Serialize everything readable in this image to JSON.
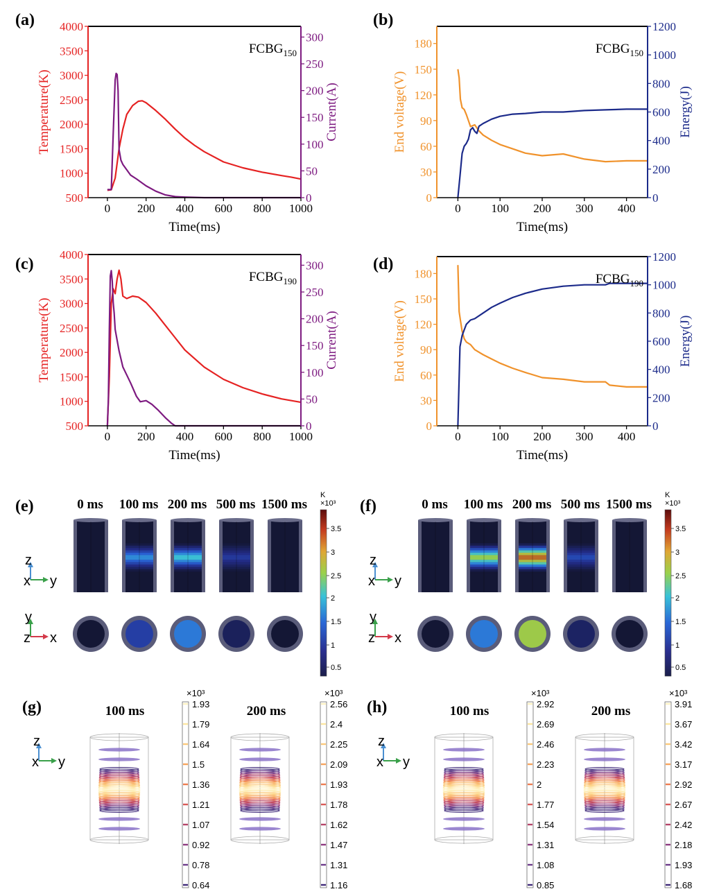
{
  "chart_data": [
    {
      "id": "a",
      "type": "line",
      "panel_label": "(a)",
      "annotation_main": "FCBG",
      "annotation_sub": "150",
      "xlabel": "Time(ms)",
      "xlim": [
        -100,
        1000
      ],
      "xticks": [
        0,
        200,
        400,
        600,
        800,
        1000
      ],
      "left_axis": {
        "label": "Temperature(K)",
        "color": "#e52222",
        "lim": [
          500,
          4000
        ],
        "ticks": [
          500,
          1000,
          1500,
          2000,
          2500,
          3000,
          3500,
          4000
        ]
      },
      "right_axis": {
        "label": "Current(A)",
        "color": "#7d1a80",
        "lim": [
          0,
          320
        ],
        "ticks": [
          0,
          50,
          100,
          150,
          200,
          250,
          300
        ]
      },
      "series": [
        {
          "name": "Temperature",
          "axis": "left",
          "color": "#e52222",
          "x": [
            0,
            20,
            40,
            60,
            80,
            100,
            130,
            160,
            180,
            200,
            250,
            300,
            350,
            400,
            450,
            500,
            600,
            700,
            800,
            900,
            950,
            1000
          ],
          "y": [
            650,
            660,
            900,
            1500,
            1900,
            2200,
            2380,
            2470,
            2480,
            2440,
            2280,
            2100,
            1900,
            1720,
            1570,
            1440,
            1230,
            1110,
            1020,
            950,
            920,
            880
          ]
        },
        {
          "name": "Current",
          "axis": "right",
          "color": "#7d1a80",
          "x": [
            0,
            20,
            30,
            40,
            45,
            50,
            55,
            60,
            70,
            80,
            100,
            120,
            150,
            200,
            250,
            300,
            350,
            400,
            500,
            700,
            1000
          ],
          "y": [
            15,
            15,
            120,
            220,
            232,
            230,
            200,
            90,
            70,
            62,
            52,
            42,
            35,
            22,
            12,
            5,
            2,
            1,
            0,
            0,
            0
          ]
        }
      ]
    },
    {
      "id": "b",
      "type": "line",
      "panel_label": "(b)",
      "annotation_main": "FCBG",
      "annotation_sub": "150",
      "xlabel": "Time(ms)",
      "xlim": [
        -50,
        450
      ],
      "xticks": [
        0,
        100,
        200,
        300,
        400
      ],
      "left_axis": {
        "label": "End voltage(V)",
        "color": "#f0922b",
        "lim": [
          0,
          200
        ],
        "ticks": [
          0,
          30,
          60,
          90,
          120,
          150,
          180
        ]
      },
      "right_axis": {
        "label": "Energy(J)",
        "color": "#1b2a8a",
        "lim": [
          0,
          1200
        ],
        "ticks": [
          0,
          200,
          400,
          600,
          800,
          1000,
          1200
        ]
      },
      "series": [
        {
          "name": "End voltage",
          "axis": "left",
          "color": "#f0922b",
          "x": [
            0,
            3,
            6,
            10,
            15,
            20,
            25,
            30,
            40,
            50,
            60,
            80,
            100,
            130,
            160,
            200,
            250,
            300,
            350,
            400,
            450
          ],
          "y": [
            150,
            140,
            115,
            105,
            103,
            97,
            90,
            83,
            85,
            78,
            73,
            67,
            62,
            57,
            52,
            49,
            51,
            45,
            42,
            43,
            43
          ]
        },
        {
          "name": "Energy",
          "axis": "right",
          "color": "#1b2a8a",
          "x": [
            0,
            5,
            10,
            15,
            20,
            25,
            30,
            35,
            40,
            45,
            50,
            60,
            80,
            100,
            130,
            160,
            200,
            250,
            300,
            350,
            400,
            450
          ],
          "y": [
            0,
            150,
            310,
            360,
            380,
            410,
            475,
            490,
            465,
            450,
            500,
            520,
            550,
            570,
            585,
            590,
            600,
            600,
            610,
            615,
            620,
            620
          ]
        }
      ]
    },
    {
      "id": "c",
      "type": "line",
      "panel_label": "(c)",
      "annotation_main": "FCBG",
      "annotation_sub": "190",
      "xlabel": "Time(ms)",
      "xlim": [
        -100,
        1000
      ],
      "xticks": [
        0,
        200,
        400,
        600,
        800,
        1000
      ],
      "left_axis": {
        "label": "Temperature(K)",
        "color": "#e52222",
        "lim": [
          500,
          4000
        ],
        "ticks": [
          500,
          1000,
          1500,
          2000,
          2500,
          3000,
          3500,
          4000
        ]
      },
      "right_axis": {
        "label": "Current(A)",
        "color": "#7d1a80",
        "lim": [
          0,
          320
        ],
        "ticks": [
          0,
          50,
          100,
          150,
          200,
          250,
          300
        ]
      },
      "series": [
        {
          "name": "Temperature",
          "axis": "left",
          "color": "#e52222",
          "x": [
            0,
            10,
            20,
            30,
            40,
            50,
            60,
            70,
            80,
            100,
            130,
            160,
            200,
            250,
            300,
            350,
            400,
            500,
            600,
            700,
            800,
            900,
            1000
          ],
          "y": [
            500,
            1500,
            3000,
            3300,
            3200,
            3500,
            3680,
            3500,
            3150,
            3100,
            3150,
            3130,
            3020,
            2800,
            2550,
            2300,
            2050,
            1700,
            1450,
            1280,
            1150,
            1050,
            980
          ]
        },
        {
          "name": "Current",
          "axis": "right",
          "color": "#7d1a80",
          "x": [
            0,
            5,
            10,
            15,
            20,
            25,
            30,
            35,
            40,
            50,
            60,
            80,
            100,
            120,
            150,
            170,
            200,
            230,
            260,
            300,
            330,
            350,
            400,
            1000
          ],
          "y": [
            0,
            50,
            180,
            280,
            290,
            270,
            230,
            210,
            180,
            160,
            140,
            110,
            95,
            80,
            55,
            45,
            47,
            40,
            30,
            15,
            5,
            0,
            0,
            0
          ]
        }
      ]
    },
    {
      "id": "d",
      "type": "line",
      "panel_label": "(d)",
      "annotation_main": "FCBG",
      "annotation_sub": "190",
      "xlabel": "Time(ms)",
      "xlim": [
        -50,
        450
      ],
      "xticks": [
        0,
        100,
        200,
        300,
        400
      ],
      "left_axis": {
        "label": "End voltage(V)",
        "color": "#f0922b",
        "lim": [
          0,
          200
        ],
        "ticks": [
          0,
          30,
          60,
          90,
          120,
          150,
          180
        ]
      },
      "right_axis": {
        "label": "Energy(J)",
        "color": "#1b2a8a",
        "lim": [
          0,
          1200
        ],
        "ticks": [
          0,
          200,
          400,
          600,
          800,
          1000,
          1200
        ]
      },
      "series": [
        {
          "name": "End voltage",
          "axis": "left",
          "color": "#f0922b",
          "x": [
            0,
            3,
            6,
            10,
            15,
            20,
            30,
            40,
            60,
            80,
            100,
            130,
            160,
            200,
            250,
            300,
            350,
            360,
            400,
            450
          ],
          "y": [
            190,
            135,
            125,
            112,
            103,
            99,
            96,
            90,
            84,
            79,
            74,
            68,
            63,
            57,
            55,
            52,
            52,
            48,
            46,
            46
          ]
        },
        {
          "name": "Energy",
          "axis": "right",
          "color": "#1b2a8a",
          "x": [
            0,
            5,
            10,
            15,
            20,
            30,
            40,
            60,
            80,
            100,
            130,
            160,
            200,
            250,
            300,
            350,
            360,
            400,
            450
          ],
          "y": [
            0,
            560,
            640,
            680,
            720,
            750,
            760,
            800,
            840,
            870,
            910,
            940,
            970,
            990,
            1000,
            1000,
            1010,
            1010,
            1010
          ]
        }
      ]
    }
  ],
  "panel_e": {
    "label": "(e)",
    "times": [
      "0 ms",
      "100 ms",
      "200 ms",
      "500 ms",
      "1500 ms"
    ],
    "colorbar": {
      "unit": "K",
      "scale": "×10³",
      "ticks": [
        "3.5",
        "3",
        "2.5",
        "2",
        "1.5",
        "1",
        "0.5"
      ]
    },
    "side_axes": [
      "z",
      "x",
      "y"
    ],
    "top_axes": [
      "y",
      "z",
      "x"
    ],
    "core_intensity": [
      0.0,
      0.45,
      0.55,
      0.25,
      0.0
    ]
  },
  "panel_f": {
    "label": "(f)",
    "times": [
      "0 ms",
      "100 ms",
      "200 ms",
      "500 ms",
      "1500 ms"
    ],
    "colorbar": {
      "unit": "K",
      "scale": "×10³",
      "ticks": [
        "3.5",
        "3",
        "2.5",
        "2",
        "1.5",
        "1",
        "0.5"
      ]
    },
    "side_axes": [
      "z",
      "x",
      "y"
    ],
    "top_axes": [
      "y",
      "z",
      "x"
    ],
    "core_intensity": [
      0.0,
      0.7,
      0.95,
      0.3,
      0.0
    ]
  },
  "panel_g": {
    "label": "(g)",
    "axes": [
      "z",
      "x",
      "y"
    ],
    "plots": [
      {
        "time": "100 ms",
        "scale": "×10³",
        "ticks": [
          "1.93",
          "1.79",
          "1.64",
          "1.5",
          "1.36",
          "1.21",
          "1.07",
          "0.92",
          "0.78",
          "0.64"
        ]
      },
      {
        "time": "200 ms",
        "scale": "×10³",
        "ticks": [
          "2.56",
          "2.4",
          "2.25",
          "2.09",
          "1.93",
          "1.78",
          "1.62",
          "1.47",
          "1.31",
          "1.16"
        ]
      }
    ]
  },
  "panel_h": {
    "label": "(h)",
    "axes": [
      "z",
      "x",
      "y"
    ],
    "plots": [
      {
        "time": "100 ms",
        "scale": "×10³",
        "ticks": [
          "2.92",
          "2.69",
          "2.46",
          "2.23",
          "2",
          "1.77",
          "1.54",
          "1.31",
          "1.08",
          "0.85"
        ]
      },
      {
        "time": "200 ms",
        "scale": "×10³",
        "ticks": [
          "3.91",
          "3.67",
          "3.42",
          "3.17",
          "2.92",
          "2.67",
          "2.42",
          "2.18",
          "1.93",
          "1.68"
        ]
      }
    ]
  },
  "colors": {
    "temperature": "#e52222",
    "current": "#7d1a80",
    "voltage": "#f0922b",
    "energy": "#1b2a8a",
    "cylinder_shell": "#5a5c7a",
    "cylinder_core": "#141735"
  }
}
